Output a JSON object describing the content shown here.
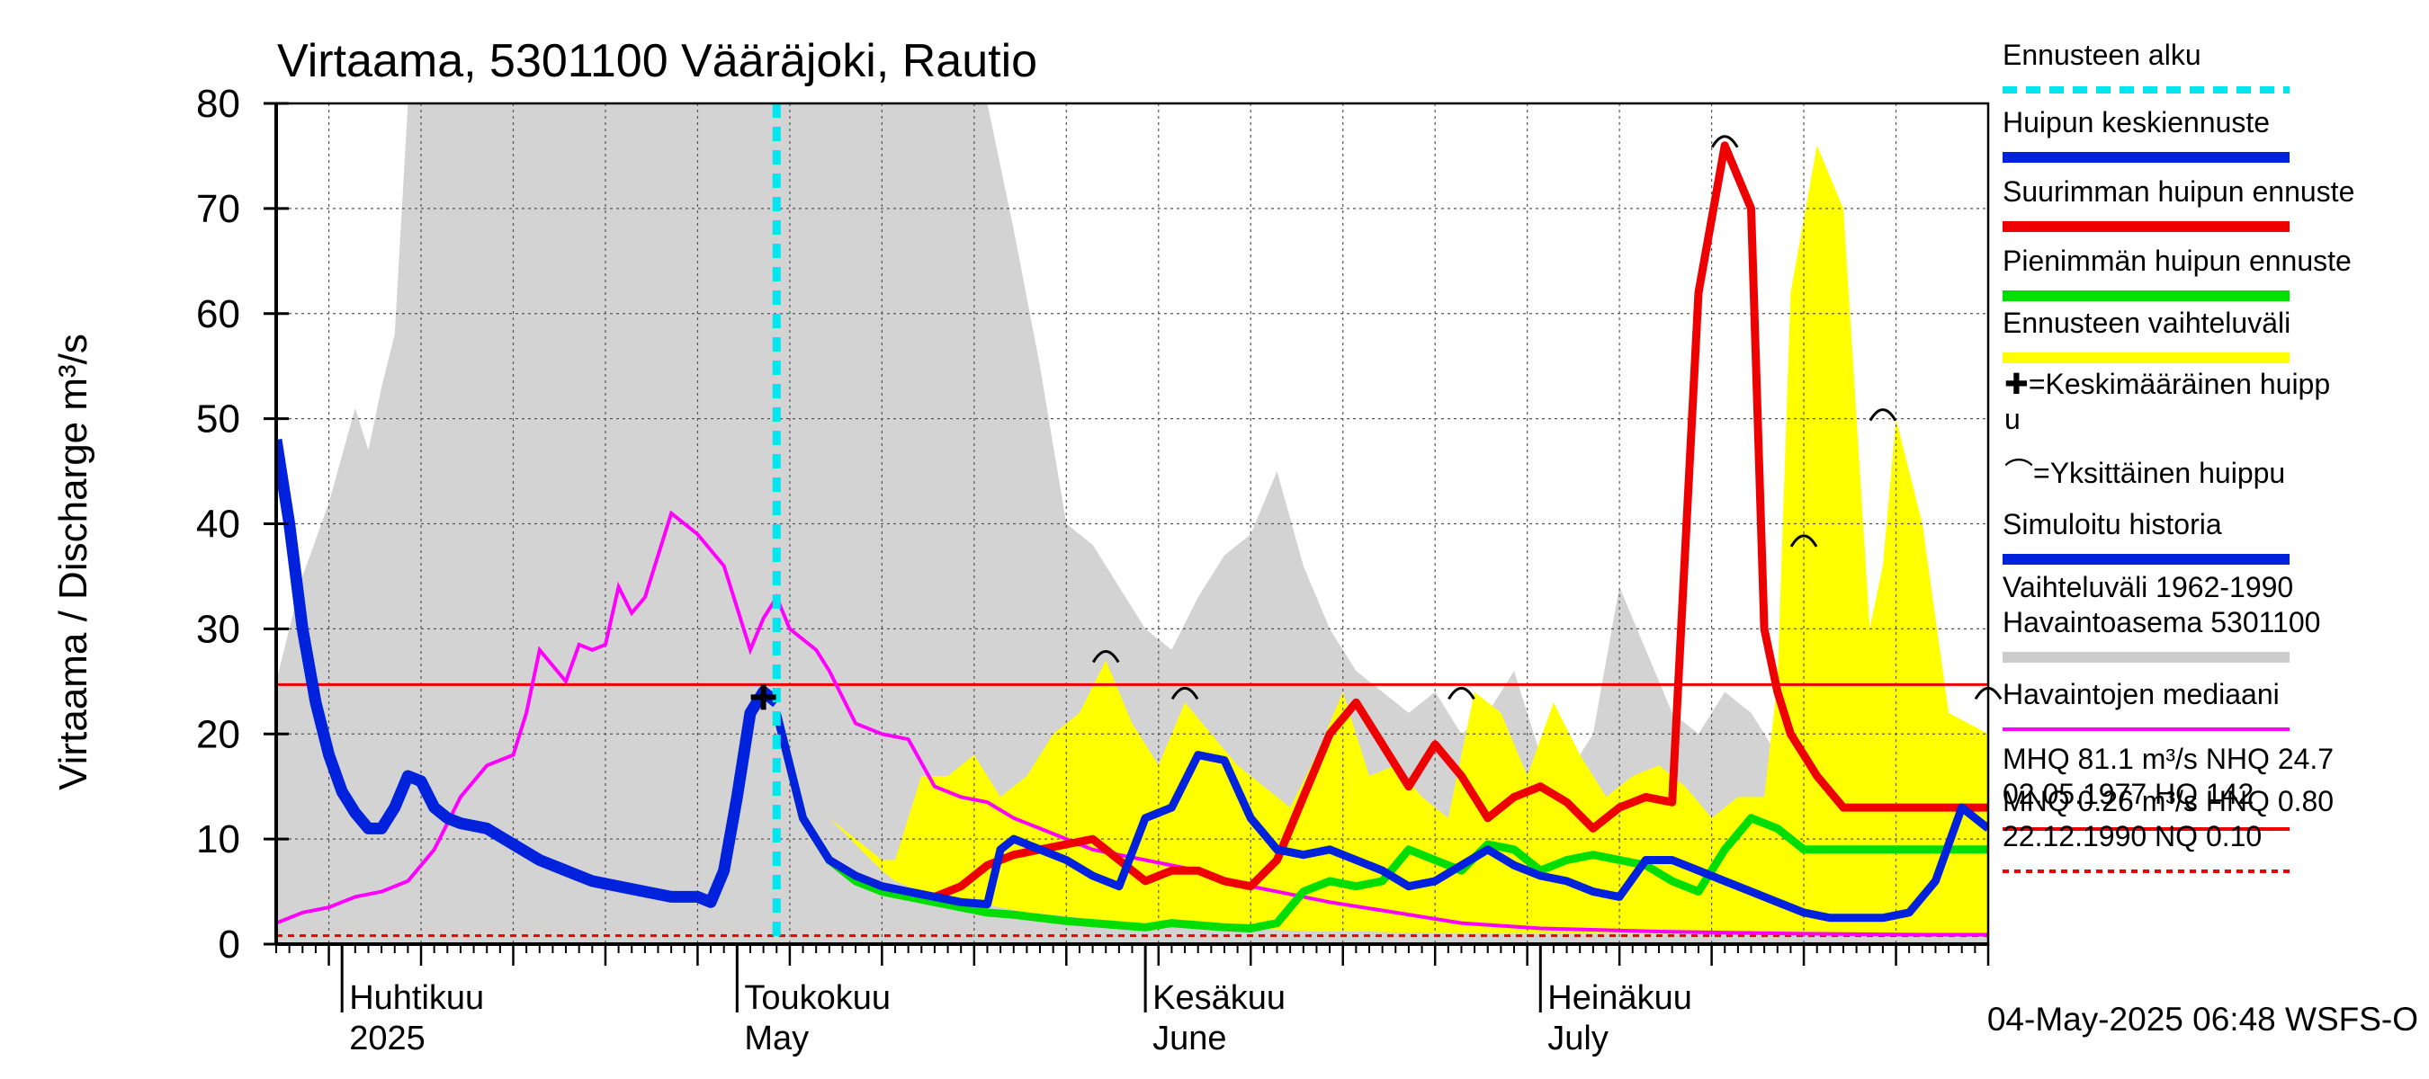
{
  "chart_data": {
    "type": "line",
    "title": "Virtaama, 5301100 Vääräjoki, Rautio",
    "ylabel": "Virtaama / Discharge    m³/s",
    "ylim": [
      0,
      80
    ],
    "yticks": [
      0,
      10,
      20,
      30,
      40,
      50,
      60,
      70,
      80
    ],
    "x_start": "2025-03-27",
    "x_end": "2025-08-04",
    "month_labels": [
      {
        "date": "2025-04-01",
        "fi": "Huhtikuu",
        "en": "2025"
      },
      {
        "date": "2025-05-01",
        "fi": "Toukokuu",
        "en": "May"
      },
      {
        "date": "2025-06-01",
        "fi": "Kesäkuu",
        "en": "June"
      },
      {
        "date": "2025-07-01",
        "fi": "Heinäkuu",
        "en": "July"
      }
    ],
    "forecast_start": "2025-05-04",
    "reference_lines": {
      "mhq": 24.7,
      "mnq": 0.8
    },
    "legend": [
      {
        "label": "Ennusteen alku",
        "color": "#00e5ee",
        "style": "dashed"
      },
      {
        "label": "Huipun keskiennuste",
        "color": "#0022dd",
        "style": "solid"
      },
      {
        "label": "Suurimman huipun ennuste",
        "color": "#ee0000",
        "style": "solid"
      },
      {
        "label": "Pienimmän huipun ennuste",
        "color": "#00dd00",
        "style": "solid"
      },
      {
        "label": "Ennusteen vaihteluväli",
        "color": "#ffff00",
        "style": "solid"
      },
      {
        "label": "✚=Keskimääräinen huipp",
        "label2": "u",
        "color": "",
        "style": "none"
      },
      {
        "label": "⌒=Yksittäinen huippu",
        "color": "",
        "style": "none"
      },
      {
        "label": "Simuloitu historia",
        "color": "#0022dd",
        "style": "solid"
      },
      {
        "label": "Vaihteluväli 1962-1990",
        "label2": " Havaintoasema 5301100",
        "color": "#cccccc",
        "style": "solid"
      },
      {
        "label": "Havaintojen mediaani",
        "color": "#ff00ff",
        "style": "solid"
      },
      {
        "label": "MHQ 81.1 m³/s NHQ 24.7",
        "label2": "02.05.1977 HQ  142",
        "color": "#ee0000",
        "style": "solid"
      },
      {
        "label": "MNQ 0.26 m³/s HNQ 0.80",
        "label2": "22.12.1990 NQ 0.10",
        "color": "#ee0000",
        "style": "dashed"
      }
    ],
    "footer": "04-May-2025 06:48 WSFS-O",
    "series": [
      {
        "name": "Vaihteluväli 1962-1990",
        "role": "hist_band",
        "color": "#d3d3d3",
        "x": [
          "2025-03-27",
          "2025-03-29",
          "2025-03-31",
          "2025-04-02",
          "2025-04-03",
          "2025-04-04",
          "2025-04-05",
          "2025-04-06",
          "2025-04-08",
          "2025-04-10",
          "2025-04-12",
          "2025-04-14",
          "2025-04-20",
          "2025-04-25",
          "2025-04-30",
          "2025-05-05",
          "2025-05-10",
          "2025-05-14",
          "2025-05-16",
          "2025-05-18",
          "2025-05-20",
          "2025-05-22",
          "2025-05-24",
          "2025-05-26",
          "2025-05-28",
          "2025-05-30",
          "2025-06-01",
          "2025-06-03",
          "2025-06-05",
          "2025-06-07",
          "2025-06-09",
          "2025-06-11",
          "2025-06-13",
          "2025-06-15",
          "2025-06-17",
          "2025-06-19",
          "2025-06-21",
          "2025-06-23",
          "2025-06-25",
          "2025-06-27",
          "2025-06-29",
          "2025-07-01",
          "2025-07-03",
          "2025-07-05",
          "2025-07-07",
          "2025-07-09",
          "2025-07-11",
          "2025-07-13",
          "2025-07-15",
          "2025-07-17",
          "2025-07-19",
          "2025-07-21",
          "2025-07-23",
          "2025-07-25",
          "2025-07-27",
          "2025-07-29",
          "2025-07-31",
          "2025-08-02",
          "2025-08-04"
        ],
        "low": [
          0,
          0,
          0,
          0,
          0,
          0,
          0,
          0,
          0,
          0,
          0,
          0,
          0,
          0,
          0,
          0,
          0,
          0,
          0,
          0,
          0,
          0,
          0,
          0,
          0,
          0,
          0,
          0,
          0,
          0,
          0,
          0,
          0,
          0,
          0,
          0,
          0,
          0,
          0,
          0,
          0,
          0,
          0,
          0,
          0,
          0,
          0,
          0,
          0,
          0,
          0,
          0,
          0,
          0,
          0,
          0,
          0,
          0,
          0
        ],
        "high": [
          25,
          35,
          42,
          51,
          47,
          53,
          58,
          80,
          80,
          80,
          80,
          80,
          80,
          80,
          80,
          80,
          80,
          80,
          80,
          80,
          80,
          68,
          55,
          40,
          38,
          34,
          30,
          28,
          33,
          37,
          39,
          45,
          36,
          30,
          26,
          24,
          22,
          24,
          20,
          22,
          26,
          18,
          16,
          20,
          34,
          28,
          22,
          20,
          24,
          22,
          18,
          16,
          17,
          19,
          22,
          20,
          16,
          18,
          20
        ]
      },
      {
        "name": "Ennusteen vaihteluväli",
        "role": "fc_band",
        "color": "#ffff00",
        "x": [
          "2025-05-04",
          "2025-05-08",
          "2025-05-12",
          "2025-05-13",
          "2025-05-15",
          "2025-05-17",
          "2025-05-19",
          "2025-05-21",
          "2025-05-23",
          "2025-05-25",
          "2025-05-27",
          "2025-05-29",
          "2025-05-31",
          "2025-06-02",
          "2025-06-04",
          "2025-06-06",
          "2025-06-08",
          "2025-06-10",
          "2025-06-12",
          "2025-06-14",
          "2025-06-16",
          "2025-06-18",
          "2025-06-20",
          "2025-06-22",
          "2025-06-24",
          "2025-06-26",
          "2025-06-28",
          "2025-06-30",
          "2025-07-02",
          "2025-07-04",
          "2025-07-06",
          "2025-07-08",
          "2025-07-10",
          "2025-07-12",
          "2025-07-14",
          "2025-07-16",
          "2025-07-18",
          "2025-07-19",
          "2025-07-20",
          "2025-07-22",
          "2025-07-24",
          "2025-07-26",
          "2025-07-27",
          "2025-07-28",
          "2025-07-30",
          "2025-08-01",
          "2025-08-04"
        ],
        "low": [
          22,
          12,
          7,
          6,
          5,
          4.5,
          4,
          3.5,
          3,
          2.8,
          2.5,
          2.2,
          2,
          1.8,
          1.8,
          1.6,
          1.5,
          1.4,
          1.3,
          1.2,
          1.2,
          1.2,
          1.1,
          1.1,
          1,
          1,
          1,
          1,
          1,
          1,
          1,
          1,
          1,
          1,
          1,
          1,
          1,
          1,
          1,
          1,
          1,
          1,
          1,
          1,
          1,
          1,
          1
        ],
        "high": [
          22,
          12,
          8,
          8,
          16,
          16,
          18,
          14,
          16,
          20,
          22,
          27,
          21,
          17,
          23,
          20,
          17,
          15,
          13,
          18,
          24,
          16,
          17,
          14,
          12,
          24,
          22,
          16,
          23,
          18,
          14,
          16,
          17,
          15,
          12,
          14,
          14,
          25,
          62,
          76,
          70,
          30,
          36,
          50,
          40,
          22,
          20
        ]
      },
      {
        "name": "Havaintojen mediaani",
        "role": "median",
        "color": "#ff00ff",
        "x": [
          "2025-03-27",
          "2025-03-29",
          "2025-03-31",
          "2025-04-02",
          "2025-04-04",
          "2025-04-06",
          "2025-04-08",
          "2025-04-10",
          "2025-04-12",
          "2025-04-14",
          "2025-04-15",
          "2025-04-16",
          "2025-04-18",
          "2025-04-19",
          "2025-04-20",
          "2025-04-21",
          "2025-04-22",
          "2025-04-23",
          "2025-04-24",
          "2025-04-25",
          "2025-04-26",
          "2025-04-28",
          "2025-04-30",
          "2025-05-02",
          "2025-05-03",
          "2025-05-04",
          "2025-05-05",
          "2025-05-06",
          "2025-05-07",
          "2025-05-08",
          "2025-05-10",
          "2025-05-12",
          "2025-05-14",
          "2025-05-16",
          "2025-05-18",
          "2025-05-20",
          "2025-05-22",
          "2025-05-24",
          "2025-05-26",
          "2025-05-28",
          "2025-05-30",
          "2025-06-01",
          "2025-06-03",
          "2025-06-05",
          "2025-06-07",
          "2025-06-09",
          "2025-06-11",
          "2025-06-15",
          "2025-06-20",
          "2025-06-25",
          "2025-07-01",
          "2025-07-10",
          "2025-07-20",
          "2025-07-30",
          "2025-08-04"
        ],
        "y": [
          2,
          3,
          3.5,
          4.5,
          5,
          6,
          9,
          14,
          17,
          18,
          22,
          28,
          25,
          28.5,
          28,
          28.5,
          34,
          31.5,
          33,
          37,
          41,
          39,
          36,
          28,
          31,
          33,
          30,
          29,
          28,
          26,
          21,
          20,
          19.5,
          15,
          14,
          13.5,
          12,
          11,
          10,
          9,
          8.5,
          8,
          7.5,
          7,
          6,
          5.5,
          5,
          4,
          3,
          2,
          1.5,
          1.2,
          1.0,
          0.9,
          0.9
        ]
      },
      {
        "name": "Suurimman huipun ennuste",
        "role": "max",
        "color": "#ee0000",
        "x": [
          "2025-05-04",
          "2025-05-06",
          "2025-05-08",
          "2025-05-10",
          "2025-05-12",
          "2025-05-14",
          "2025-05-16",
          "2025-05-18",
          "2025-05-20",
          "2025-05-22",
          "2025-05-24",
          "2025-05-26",
          "2025-05-28",
          "2025-05-30",
          "2025-06-01",
          "2025-06-03",
          "2025-06-05",
          "2025-06-07",
          "2025-06-09",
          "2025-06-11",
          "2025-06-13",
          "2025-06-15",
          "2025-06-17",
          "2025-06-19",
          "2025-06-21",
          "2025-06-23",
          "2025-06-25",
          "2025-06-27",
          "2025-06-29",
          "2025-07-01",
          "2025-07-03",
          "2025-07-05",
          "2025-07-07",
          "2025-07-09",
          "2025-07-11",
          "2025-07-13",
          "2025-07-15",
          "2025-07-17",
          "2025-07-18",
          "2025-07-19",
          "2025-07-20",
          "2025-07-21",
          "2025-07-22",
          "2025-07-24",
          "2025-07-26",
          "2025-07-28",
          "2025-07-30",
          "2025-08-01",
          "2025-08-04"
        ],
        "y": [
          22,
          12,
          8,
          6.5,
          5.5,
          5,
          4.5,
          5.5,
          7.5,
          8.5,
          9,
          9.5,
          10,
          8,
          6,
          7,
          7,
          6,
          5.5,
          8,
          14,
          20,
          23,
          19,
          15,
          19,
          16,
          12,
          14,
          15,
          13.5,
          11,
          13,
          14,
          13.5,
          62,
          76,
          70,
          30,
          24,
          20,
          18,
          16,
          13,
          13,
          13,
          13,
          13,
          13
        ]
      },
      {
        "name": "Pienimmän huipun ennuste",
        "role": "min",
        "color": "#00dd00",
        "x": [
          "2025-05-04",
          "2025-05-06",
          "2025-05-08",
          "2025-05-10",
          "2025-05-12",
          "2025-05-14",
          "2025-05-16",
          "2025-05-18",
          "2025-05-20",
          "2025-05-22",
          "2025-05-24",
          "2025-05-26",
          "2025-05-28",
          "2025-05-30",
          "2025-06-01",
          "2025-06-03",
          "2025-06-05",
          "2025-06-07",
          "2025-06-09",
          "2025-06-11",
          "2025-06-13",
          "2025-06-15",
          "2025-06-17",
          "2025-06-19",
          "2025-06-21",
          "2025-06-23",
          "2025-06-25",
          "2025-06-27",
          "2025-06-29",
          "2025-07-01",
          "2025-07-03",
          "2025-07-05",
          "2025-07-07",
          "2025-07-09",
          "2025-07-11",
          "2025-07-13",
          "2025-07-15",
          "2025-07-17",
          "2025-07-19",
          "2025-07-21",
          "2025-07-23",
          "2025-07-25",
          "2025-07-27",
          "2025-07-29",
          "2025-07-31",
          "2025-08-02",
          "2025-08-04"
        ],
        "y": [
          22,
          12,
          8,
          6,
          5,
          4.5,
          4,
          3.5,
          3,
          2.8,
          2.5,
          2.2,
          2,
          1.8,
          1.6,
          2,
          1.8,
          1.6,
          1.5,
          2,
          5,
          6,
          5.5,
          6,
          9,
          8,
          7,
          9.5,
          9,
          7,
          8,
          8.5,
          8,
          7.5,
          6,
          5,
          9,
          12,
          11,
          9,
          9,
          9,
          9,
          9,
          9,
          9,
          9
        ]
      },
      {
        "name": "Huipun keskiennuste",
        "role": "mean",
        "color": "#0022dd",
        "x": [
          "2025-05-04",
          "2025-05-06",
          "2025-05-08",
          "2025-05-10",
          "2025-05-12",
          "2025-05-14",
          "2025-05-16",
          "2025-05-18",
          "2025-05-20",
          "2025-05-21",
          "2025-05-22",
          "2025-05-24",
          "2025-05-26",
          "2025-05-28",
          "2025-05-30",
          "2025-06-01",
          "2025-06-03",
          "2025-06-05",
          "2025-06-07",
          "2025-06-09",
          "2025-06-11",
          "2025-06-13",
          "2025-06-15",
          "2025-06-17",
          "2025-06-19",
          "2025-06-21",
          "2025-06-23",
          "2025-06-25",
          "2025-06-27",
          "2025-06-29",
          "2025-07-01",
          "2025-07-03",
          "2025-07-05",
          "2025-07-07",
          "2025-07-09",
          "2025-07-11",
          "2025-07-13",
          "2025-07-15",
          "2025-07-17",
          "2025-07-19",
          "2025-07-21",
          "2025-07-23",
          "2025-07-25",
          "2025-07-27",
          "2025-07-29",
          "2025-07-31",
          "2025-08-02",
          "2025-08-04"
        ],
        "y": [
          22,
          12,
          8,
          6.5,
          5.5,
          5,
          4.5,
          4,
          3.8,
          9,
          10,
          9,
          8,
          6.5,
          5.5,
          12,
          13,
          18,
          17.5,
          12,
          9,
          8.5,
          9,
          8,
          7,
          5.5,
          6,
          7.5,
          9,
          7.5,
          6.5,
          6,
          5,
          4.5,
          8,
          8,
          7,
          6,
          5,
          4,
          3,
          2.5,
          2.5,
          2.5,
          3,
          6,
          13,
          11
        ]
      },
      {
        "name": "Simuloitu historia",
        "role": "history",
        "color": "#0022dd",
        "x": [
          "2025-03-27",
          "2025-03-28",
          "2025-03-29",
          "2025-03-30",
          "2025-03-31",
          "2025-04-01",
          "2025-04-02",
          "2025-04-03",
          "2025-04-04",
          "2025-04-05",
          "2025-04-06",
          "2025-04-07",
          "2025-04-08",
          "2025-04-09",
          "2025-04-10",
          "2025-04-12",
          "2025-04-14",
          "2025-04-16",
          "2025-04-18",
          "2025-04-20",
          "2025-04-22",
          "2025-04-24",
          "2025-04-26",
          "2025-04-28",
          "2025-04-29",
          "2025-04-30",
          "2025-05-01",
          "2025-05-02",
          "2025-05-03",
          "2025-05-04"
        ],
        "y": [
          48,
          40,
          30,
          23,
          18,
          14.5,
          12.5,
          11,
          11,
          13,
          16,
          15.5,
          13,
          12,
          11.5,
          11,
          9.5,
          8,
          7,
          6,
          5.5,
          5,
          4.5,
          4.5,
          4,
          7,
          14,
          22,
          24,
          23
        ]
      }
    ],
    "peaks": [
      {
        "x": "2025-05-03",
        "y": 23.5,
        "kind": "mean"
      },
      {
        "x": "2025-05-29",
        "y": 27,
        "kind": "single"
      },
      {
        "x": "2025-06-04",
        "y": 23.5,
        "kind": "single"
      },
      {
        "x": "2025-06-25",
        "y": 23.5,
        "kind": "single"
      },
      {
        "x": "2025-07-15",
        "y": 76,
        "kind": "single"
      },
      {
        "x": "2025-07-21",
        "y": 38,
        "kind": "single"
      },
      {
        "x": "2025-07-27",
        "y": 50,
        "kind": "single"
      },
      {
        "x": "2025-08-04",
        "y": 23.5,
        "kind": "single"
      }
    ]
  }
}
